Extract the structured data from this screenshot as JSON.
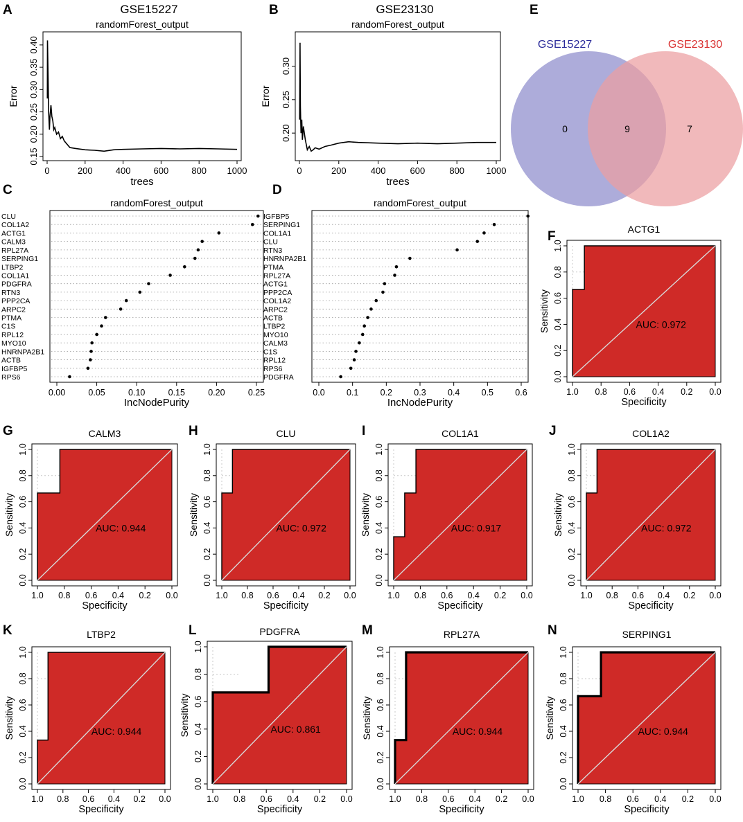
{
  "figure_title": "",
  "colors": {
    "roc_fill": "#cf2a27",
    "venn_left": "#8e8ccc",
    "venn_right": "#ec9ea1",
    "venn_left_label": "#2a2a9a",
    "venn_right_label": "#d93030",
    "diag": "#d8d8d8",
    "grid": "#c8c8c8"
  },
  "chart_data": [
    {
      "panel": "A",
      "type": "line",
      "title": "GSE15227",
      "subtitle": "randomForest_output",
      "xlabel": "trees",
      "ylabel": "Error",
      "xlim": [
        0,
        1000
      ],
      "ylim": [
        0.15,
        0.42
      ],
      "xticks": [
        0,
        200,
        400,
        600,
        800,
        1000
      ],
      "yticks": [
        0.15,
        0.2,
        0.25,
        0.3,
        0.35,
        0.4
      ],
      "ytick_labels": [
        "0.15",
        "0.20",
        "0.25",
        "0.30",
        "0.35",
        "0.40"
      ],
      "x": [
        1,
        2,
        5,
        8,
        12,
        15,
        20,
        25,
        30,
        35,
        40,
        50,
        60,
        70,
        80,
        90,
        100,
        120,
        150,
        200,
        250,
        300,
        350,
        400,
        500,
        600,
        700,
        800,
        900,
        1000
      ],
      "y": [
        0.28,
        0.41,
        0.33,
        0.25,
        0.21,
        0.24,
        0.265,
        0.24,
        0.23,
        0.21,
        0.215,
        0.2,
        0.205,
        0.19,
        0.195,
        0.185,
        0.18,
        0.17,
        0.168,
        0.165,
        0.164,
        0.162,
        0.165,
        0.166,
        0.167,
        0.168,
        0.167,
        0.168,
        0.167,
        0.166
      ]
    },
    {
      "panel": "B",
      "type": "line",
      "title": "GSE23130",
      "subtitle": "randomForest_output",
      "xlabel": "trees",
      "ylabel": "Error",
      "xlim": [
        0,
        1000
      ],
      "ylim": [
        0.165,
        0.345
      ],
      "xticks": [
        0,
        200,
        400,
        600,
        800,
        1000
      ],
      "yticks": [
        0.2,
        0.25,
        0.3
      ],
      "ytick_labels": [
        "0.20",
        "0.25",
        "0.30"
      ],
      "x": [
        1,
        3,
        5,
        8,
        12,
        15,
        20,
        25,
        30,
        40,
        50,
        60,
        70,
        80,
        100,
        130,
        160,
        200,
        250,
        300,
        400,
        500,
        600,
        700,
        800,
        900,
        1000
      ],
      "y": [
        0.22,
        0.335,
        0.24,
        0.2,
        0.22,
        0.19,
        0.21,
        0.2,
        0.19,
        0.175,
        0.18,
        0.173,
        0.175,
        0.178,
        0.176,
        0.18,
        0.182,
        0.185,
        0.187,
        0.186,
        0.185,
        0.184,
        0.185,
        0.184,
        0.185,
        0.186,
        0.186
      ]
    },
    {
      "panel": "C",
      "type": "scatter",
      "title": "randomForest_output",
      "xlabel": "IncNodePurity",
      "xlim": [
        0,
        0.25
      ],
      "xticks": [
        0,
        0.05,
        0.1,
        0.15,
        0.2,
        0.25
      ],
      "xtick_labels": [
        "0.00",
        "0.05",
        "0.10",
        "0.15",
        "0.20",
        "0.25"
      ],
      "categories": [
        "CLU",
        "COL1A2",
        "ACTG1",
        "CALM3",
        "RPL27A",
        "SERPING1",
        "LTBP2",
        "COL1A1",
        "PDGFRA",
        "RTN3",
        "PPP2CA",
        "ARPC2",
        "PTMA",
        "C1S",
        "RPL12",
        "MYO10",
        "HNRNPA2B1",
        "ACTB",
        "IGFBP5",
        "RPS6"
      ],
      "values": [
        0.252,
        0.245,
        0.203,
        0.182,
        0.177,
        0.173,
        0.16,
        0.142,
        0.115,
        0.104,
        0.087,
        0.08,
        0.061,
        0.056,
        0.05,
        0.044,
        0.043,
        0.042,
        0.039,
        0.016
      ]
    },
    {
      "panel": "D",
      "type": "scatter",
      "title": "randomForest_output",
      "xlabel": "IncNodePurity",
      "xlim": [
        0,
        0.6
      ],
      "xticks": [
        0,
        0.1,
        0.2,
        0.3,
        0.4,
        0.5,
        0.6
      ],
      "xtick_labels": [
        "0.0",
        "0.1",
        "0.2",
        "0.3",
        "0.4",
        "0.5",
        "0.6"
      ],
      "categories": [
        "IGFBP5",
        "SERPING1",
        "COL1A1",
        "CLU",
        "RTN3",
        "HNRNPA2B1",
        "PTMA",
        "RPL27A",
        "ACTG1",
        "PPP2CA",
        "COL1A2",
        "ARPC2",
        "ACTB",
        "LTBP2",
        "MYO10",
        "CALM3",
        "C1S",
        "RPL12",
        "RPS6",
        "PDGFRA"
      ],
      "values": [
        0.62,
        0.52,
        0.49,
        0.47,
        0.41,
        0.27,
        0.23,
        0.225,
        0.195,
        0.19,
        0.17,
        0.155,
        0.145,
        0.135,
        0.13,
        0.12,
        0.11,
        0.105,
        0.095,
        0.065
      ]
    },
    {
      "panel": "E",
      "type": "venn",
      "sets": [
        "GSE15227",
        "GSE23130"
      ],
      "counts": {
        "left_only": "0",
        "both": "9",
        "right_only": "7"
      }
    },
    {
      "panel": "F",
      "type": "roc",
      "title": "ACTG1",
      "auc_label": "AUC: 0.972",
      "xlabel": "Specificity",
      "ylabel": "Sensitivity",
      "ticks": [
        0,
        0.2,
        0.4,
        0.6,
        0.8,
        1.0
      ],
      "tick_labels": [
        "0.0",
        "0.2",
        "0.4",
        "0.6",
        "0.8",
        "1.0"
      ],
      "specificity": [
        1.0,
        1.0,
        0.917,
        0.917,
        0.0
      ],
      "sensitivity": [
        0.0,
        0.667,
        0.667,
        1.0,
        1.0
      ],
      "thick": false
    },
    {
      "panel": "G",
      "type": "roc",
      "title": "CALM3",
      "auc_label": "AUC: 0.944",
      "xlabel": "Specificity",
      "ylabel": "Sensitivity",
      "ticks": [
        0,
        0.2,
        0.4,
        0.6,
        0.8,
        1.0
      ],
      "tick_labels": [
        "0.0",
        "0.2",
        "0.4",
        "0.6",
        "0.8",
        "1.0"
      ],
      "specificity": [
        1.0,
        1.0,
        0.833,
        0.833,
        0.0
      ],
      "sensitivity": [
        0.0,
        0.667,
        0.667,
        1.0,
        1.0
      ],
      "thick": false
    },
    {
      "panel": "H",
      "type": "roc",
      "title": "CLU",
      "auc_label": "AUC: 0.972",
      "xlabel": "Specificity",
      "ylabel": "Sensitivity",
      "ticks": [
        0,
        0.2,
        0.4,
        0.6,
        0.8,
        1.0
      ],
      "tick_labels": [
        "0.0",
        "0.2",
        "0.4",
        "0.6",
        "0.8",
        "1.0"
      ],
      "specificity": [
        1.0,
        1.0,
        0.917,
        0.917,
        0.0
      ],
      "sensitivity": [
        0.0,
        0.667,
        0.667,
        1.0,
        1.0
      ],
      "thick": false
    },
    {
      "panel": "I",
      "type": "roc",
      "title": "COL1A1",
      "auc_label": "AUC: 0.917",
      "xlabel": "Specificity",
      "ylabel": "Sensitivity",
      "ticks": [
        0,
        0.2,
        0.4,
        0.6,
        0.8,
        1.0
      ],
      "tick_labels": [
        "0.0",
        "0.2",
        "0.4",
        "0.6",
        "0.8",
        "1.0"
      ],
      "specificity": [
        1.0,
        1.0,
        0.917,
        0.917,
        0.833,
        0.833,
        0.0
      ],
      "sensitivity": [
        0.0,
        0.333,
        0.333,
        0.667,
        0.667,
        1.0,
        1.0
      ],
      "thick": false
    },
    {
      "panel": "J",
      "type": "roc",
      "title": "COL1A2",
      "auc_label": "AUC: 0.972",
      "xlabel": "Specificity",
      "ylabel": "Sensitivity",
      "ticks": [
        0,
        0.2,
        0.4,
        0.6,
        0.8,
        1.0
      ],
      "tick_labels": [
        "0.0",
        "0.2",
        "0.4",
        "0.6",
        "0.8",
        "1.0"
      ],
      "specificity": [
        1.0,
        1.0,
        0.917,
        0.917,
        0.0
      ],
      "sensitivity": [
        0.0,
        0.667,
        0.667,
        1.0,
        1.0
      ],
      "thick": false
    },
    {
      "panel": "K",
      "type": "roc",
      "title": "LTBP2",
      "auc_label": "AUC: 0.944",
      "xlabel": "Specificity",
      "ylabel": "Sensitivity",
      "ticks": [
        0,
        0.2,
        0.4,
        0.6,
        0.8,
        1.0
      ],
      "tick_labels": [
        "0.0",
        "0.2",
        "0.4",
        "0.6",
        "0.8",
        "1.0"
      ],
      "specificity": [
        1.0,
        1.0,
        0.917,
        0.917,
        0.0
      ],
      "sensitivity": [
        0.0,
        0.333,
        0.333,
        1.0,
        1.0
      ],
      "thick": false
    },
    {
      "panel": "L",
      "type": "roc",
      "title": "PDGFRA",
      "auc_label": "AUC: 0.861",
      "xlabel": "Specificity",
      "ylabel": "Sensitivity",
      "ticks": [
        0,
        0.2,
        0.4,
        0.6,
        0.8,
        1.0
      ],
      "tick_labels": [
        "0.0",
        "0.2",
        "0.4",
        "0.6",
        "0.8",
        "1.0"
      ],
      "specificity": [
        1.0,
        1.0,
        0.583,
        0.583,
        0.0
      ],
      "sensitivity": [
        0.0,
        0.667,
        0.667,
        1.0,
        1.0
      ],
      "thick": true
    },
    {
      "panel": "M",
      "type": "roc",
      "title": "RPL27A",
      "auc_label": "AUC: 0.944",
      "xlabel": "Specificity",
      "ylabel": "Sensitivity",
      "ticks": [
        0,
        0.2,
        0.4,
        0.6,
        0.8,
        1.0
      ],
      "tick_labels": [
        "0.0",
        "0.2",
        "0.4",
        "0.6",
        "0.8",
        "1.0"
      ],
      "specificity": [
        1.0,
        1.0,
        0.917,
        0.917,
        0.0
      ],
      "sensitivity": [
        0.0,
        0.333,
        0.333,
        1.0,
        1.0
      ],
      "thick": true
    },
    {
      "panel": "N",
      "type": "roc",
      "title": "SERPING1",
      "auc_label": "AUC: 0.944",
      "xlabel": "Specificity",
      "ylabel": "Sensitivity",
      "ticks": [
        0,
        0.2,
        0.4,
        0.6,
        0.8,
        1.0
      ],
      "tick_labels": [
        "0.0",
        "0.2",
        "0.4",
        "0.6",
        "0.8",
        "1.0"
      ],
      "specificity": [
        1.0,
        1.0,
        0.833,
        0.833,
        0.0
      ],
      "sensitivity": [
        0.0,
        0.667,
        0.667,
        1.0,
        1.0
      ],
      "thick": true
    }
  ]
}
